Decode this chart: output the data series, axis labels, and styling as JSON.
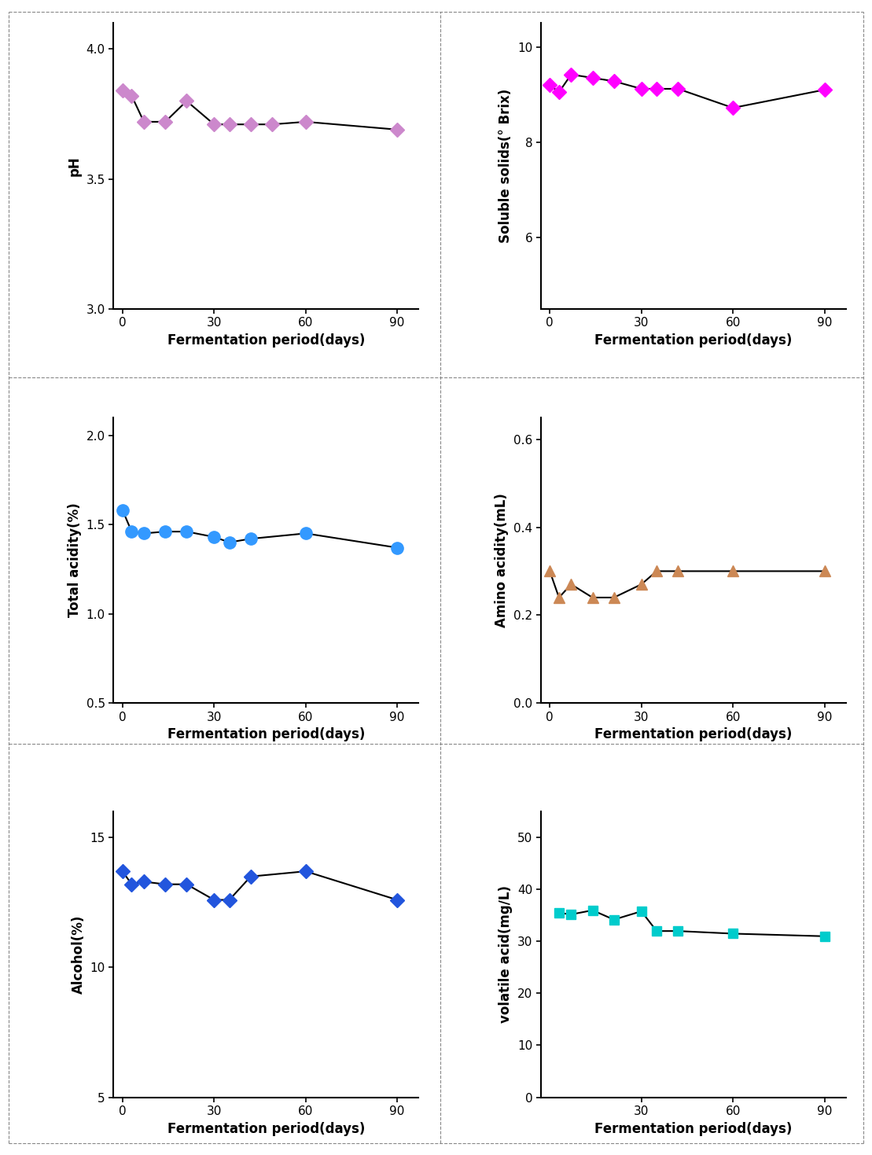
{
  "ph": {
    "x": [
      0,
      3,
      7,
      14,
      21,
      30,
      35,
      42,
      49,
      60,
      90
    ],
    "y": [
      3.84,
      3.82,
      3.72,
      3.72,
      3.8,
      3.71,
      3.71,
      3.71,
      3.71,
      3.72,
      3.69
    ],
    "ylabel": "pH",
    "ylim": [
      3.0,
      4.1
    ],
    "yticks": [
      3.0,
      3.5,
      4.0
    ],
    "xlim": [
      -3,
      97
    ],
    "marker": "D",
    "color": "#CC88CC",
    "markersize": 9
  },
  "soluble": {
    "x": [
      0,
      3,
      7,
      14,
      21,
      30,
      35,
      42,
      60,
      90
    ],
    "y": [
      9.2,
      9.05,
      9.42,
      9.35,
      9.28,
      9.12,
      9.12,
      9.12,
      8.72,
      9.1
    ],
    "ylabel": "Soluble solids(° Brix)",
    "ylim": [
      4.5,
      10.5
    ],
    "yticks": [
      6,
      8,
      10
    ],
    "xlim": [
      -3,
      97
    ],
    "marker": "D",
    "color": "#FF00FF",
    "markersize": 9
  },
  "total_acidity": {
    "x": [
      0,
      3,
      7,
      14,
      21,
      30,
      35,
      42,
      60,
      90
    ],
    "y": [
      1.58,
      1.46,
      1.45,
      1.46,
      1.46,
      1.43,
      1.4,
      1.42,
      1.45,
      1.37
    ],
    "ylabel": "Total acidity(%)",
    "ylim": [
      0.5,
      2.1
    ],
    "yticks": [
      0.5,
      1.0,
      1.5,
      2.0
    ],
    "xlim": [
      -3,
      97
    ],
    "marker": "o",
    "color": "#3399FF",
    "markersize": 11
  },
  "amino_acidity": {
    "x": [
      0,
      3,
      7,
      14,
      21,
      30,
      35,
      42,
      60,
      90
    ],
    "y": [
      0.3,
      0.24,
      0.27,
      0.24,
      0.24,
      0.27,
      0.3,
      0.3,
      0.3,
      0.3
    ],
    "ylabel": "Amino acidity(mL)",
    "ylim": [
      0.0,
      0.65
    ],
    "yticks": [
      0.0,
      0.2,
      0.4,
      0.6
    ],
    "xlim": [
      -3,
      97
    ],
    "marker": "^",
    "color": "#CC8855",
    "markersize": 10
  },
  "alcohol": {
    "x": [
      0,
      3,
      7,
      14,
      21,
      30,
      35,
      42,
      60,
      90
    ],
    "y": [
      13.7,
      13.2,
      13.3,
      13.2,
      13.2,
      12.6,
      12.6,
      13.5,
      13.7,
      12.6
    ],
    "ylabel": "Alcohol(%)",
    "ylim": [
      5,
      16
    ],
    "yticks": [
      5,
      10,
      15
    ],
    "xlim": [
      -3,
      97
    ],
    "marker": "D",
    "color": "#2255DD",
    "markersize": 9
  },
  "volatile_acid": {
    "x": [
      3,
      7,
      14,
      21,
      30,
      35,
      42,
      60,
      90
    ],
    "y": [
      35.5,
      35.2,
      36.0,
      34.2,
      35.8,
      32.0,
      32.0,
      31.5,
      31.0
    ],
    "ylabel": "volatile acid(mg/L)",
    "ylim": [
      0,
      55
    ],
    "yticks": [
      0,
      10,
      20,
      30,
      40,
      50
    ],
    "xlim": [
      -3,
      97
    ],
    "marker": "s",
    "color": "#00CCCC",
    "markersize": 9
  },
  "xlabel": "Fermentation period(days)",
  "xticks": [
    0,
    30,
    60,
    90
  ],
  "volatile_xticks": [
    30,
    60,
    90
  ],
  "line_color": "black",
  "line_width": 1.5,
  "background_color": "#ffffff"
}
